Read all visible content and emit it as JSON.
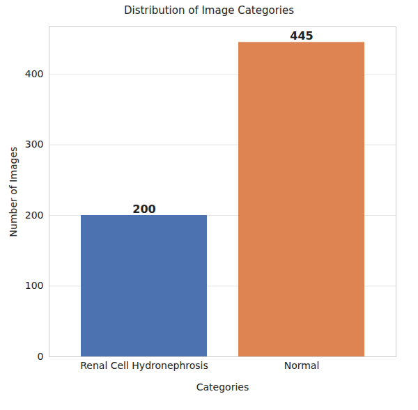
{
  "chart_data": {
    "type": "bar",
    "title": "Distribution of Image Categories",
    "x_label": "Categories",
    "y_label": "Number of Images",
    "categories": [
      "Renal Cell Hydronephrosis",
      "Normal"
    ],
    "values": [
      200,
      445
    ],
    "colors": [
      "#4c72b0",
      "#dd8452"
    ],
    "ylim": [
      0,
      467
    ],
    "yticks": [
      0,
      100,
      200,
      300,
      400
    ],
    "grid": true,
    "data_labels": true
  }
}
